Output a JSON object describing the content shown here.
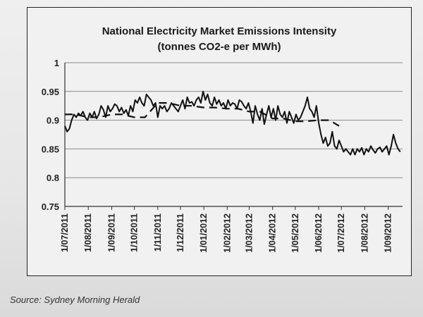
{
  "chart_data": {
    "type": "line",
    "title_lines": [
      "National Electricity Market Emissions Intensity",
      "(tonnes CO2-e per MWh)"
    ],
    "ylim": [
      0.75,
      1.0
    ],
    "yticks": [
      "0.75",
      "0.8",
      "0.85",
      "0.9",
      "0.95",
      "1"
    ],
    "ytick_values": [
      0.75,
      0.8,
      0.85,
      0.9,
      0.95,
      1.0
    ],
    "xticks": [
      "1/07/2011",
      "1/08/2011",
      "1/09/2011",
      "1/10/2011",
      "1/11/2011",
      "1/12/2011",
      "1/01/2012",
      "1/02/2012",
      "1/03/2012",
      "1/04/2012",
      "1/05/2012",
      "1/06/2012",
      "1/07/2012",
      "1/08/2012",
      "1/09/2012"
    ],
    "grid": true,
    "series": [
      {
        "style": "solid",
        "x": [
          "2011-07-01",
          "2011-07-04",
          "2011-07-07",
          "2011-07-10",
          "2011-07-13",
          "2011-07-16",
          "2011-07-19",
          "2011-07-22",
          "2011-07-25",
          "2011-07-28",
          "2011-07-31",
          "2011-08-03",
          "2011-08-06",
          "2011-08-09",
          "2011-08-12",
          "2011-08-15",
          "2011-08-18",
          "2011-08-21",
          "2011-08-24",
          "2011-08-27",
          "2011-08-30",
          "2011-09-02",
          "2011-09-05",
          "2011-09-08",
          "2011-09-11",
          "2011-09-14",
          "2011-09-17",
          "2011-09-20",
          "2011-09-23",
          "2011-09-26",
          "2011-09-29",
          "2011-10-02",
          "2011-10-05",
          "2011-10-08",
          "2011-10-11",
          "2011-10-14",
          "2011-10-17",
          "2011-10-20",
          "2011-10-23",
          "2011-10-26",
          "2011-10-29",
          "2011-11-01",
          "2011-11-04",
          "2011-11-07",
          "2011-11-10",
          "2011-11-13",
          "2011-11-16",
          "2011-11-19",
          "2011-11-22",
          "2011-11-25",
          "2011-11-28",
          "2011-12-01",
          "2011-12-04",
          "2011-12-07",
          "2011-12-10",
          "2011-12-13",
          "2011-12-16",
          "2011-12-19",
          "2011-12-22",
          "2011-12-25",
          "2011-12-28",
          "2011-12-31",
          "2012-01-03",
          "2012-01-06",
          "2012-01-09",
          "2012-01-12",
          "2012-01-15",
          "2012-01-18",
          "2012-01-21",
          "2012-01-24",
          "2012-01-27",
          "2012-01-30",
          "2012-02-02",
          "2012-02-05",
          "2012-02-08",
          "2012-02-11",
          "2012-02-14",
          "2012-02-17",
          "2012-02-20",
          "2012-02-23",
          "2012-02-26",
          "2012-02-29",
          "2012-03-03",
          "2012-03-06",
          "2012-03-09",
          "2012-03-12",
          "2012-03-15",
          "2012-03-18",
          "2012-03-21",
          "2012-03-24",
          "2012-03-27",
          "2012-03-30",
          "2012-04-02",
          "2012-04-05",
          "2012-04-08",
          "2012-04-11",
          "2012-04-14",
          "2012-04-17",
          "2012-04-20",
          "2012-04-23",
          "2012-04-26",
          "2012-04-29",
          "2012-05-02",
          "2012-05-05",
          "2012-05-08",
          "2012-05-11",
          "2012-05-14",
          "2012-05-17",
          "2012-05-20",
          "2012-05-23",
          "2012-05-26",
          "2012-05-29",
          "2012-06-01",
          "2012-06-04",
          "2012-06-07",
          "2012-06-10",
          "2012-06-13",
          "2012-06-16",
          "2012-06-19",
          "2012-06-22",
          "2012-06-25",
          "2012-06-28",
          "2012-07-01",
          "2012-07-04",
          "2012-07-07",
          "2012-07-10",
          "2012-07-13",
          "2012-07-16",
          "2012-07-19",
          "2012-07-22",
          "2012-07-25",
          "2012-07-28",
          "2012-07-31",
          "2012-08-03",
          "2012-08-06",
          "2012-08-09",
          "2012-08-12",
          "2012-08-15",
          "2012-08-18",
          "2012-08-21",
          "2012-08-24",
          "2012-08-27",
          "2012-08-30",
          "2012-09-02",
          "2012-09-05",
          "2012-09-08",
          "2012-09-11",
          "2012-09-14",
          "2012-09-17"
        ],
        "values": [
          0.89,
          0.88,
          0.885,
          0.9,
          0.91,
          0.905,
          0.912,
          0.908,
          0.915,
          0.905,
          0.9,
          0.912,
          0.905,
          0.915,
          0.903,
          0.91,
          0.925,
          0.918,
          0.905,
          0.925,
          0.915,
          0.92,
          0.928,
          0.925,
          0.915,
          0.922,
          0.912,
          0.918,
          0.908,
          0.925,
          0.915,
          0.935,
          0.93,
          0.94,
          0.93,
          0.925,
          0.945,
          0.94,
          0.935,
          0.925,
          0.93,
          0.905,
          0.925,
          0.92,
          0.925,
          0.915,
          0.92,
          0.93,
          0.925,
          0.92,
          0.915,
          0.925,
          0.935,
          0.92,
          0.94,
          0.93,
          0.932,
          0.925,
          0.935,
          0.94,
          0.93,
          0.95,
          0.935,
          0.945,
          0.93,
          0.925,
          0.94,
          0.928,
          0.935,
          0.925,
          0.93,
          0.92,
          0.935,
          0.925,
          0.93,
          0.928,
          0.92,
          0.935,
          0.932,
          0.925,
          0.92,
          0.93,
          0.915,
          0.895,
          0.925,
          0.91,
          0.9,
          0.92,
          0.893,
          0.91,
          0.925,
          0.905,
          0.92,
          0.9,
          0.925,
          0.91,
          0.905,
          0.915,
          0.895,
          0.915,
          0.905,
          0.895,
          0.91,
          0.9,
          0.905,
          0.915,
          0.925,
          0.94,
          0.92,
          0.915,
          0.905,
          0.925,
          0.895,
          0.875,
          0.86,
          0.87,
          0.855,
          0.86,
          0.88,
          0.855,
          0.85,
          0.865,
          0.855,
          0.845,
          0.85,
          0.845,
          0.84,
          0.85,
          0.84,
          0.85,
          0.845,
          0.852,
          0.84,
          0.85,
          0.845,
          0.855,
          0.848,
          0.843,
          0.85,
          0.853,
          0.845,
          0.85,
          0.855,
          0.84,
          0.855,
          0.875,
          0.86,
          0.85,
          0.845
        ]
      },
      {
        "style": "dashed",
        "x": [
          "2011-07-01",
          "2011-07-15",
          "2011-08-01",
          "2011-08-15",
          "2011-09-01",
          "2011-09-15",
          "2011-10-01",
          "2011-10-15",
          "2011-11-01",
          "2011-11-15",
          "2011-12-01",
          "2011-12-15",
          "2012-01-01",
          "2012-01-15",
          "2012-02-01",
          "2012-02-15",
          "2012-03-01",
          "2012-03-15",
          "2012-04-01",
          "2012-04-15",
          "2012-05-01",
          "2012-05-15",
          "2012-06-01",
          "2012-06-15",
          "2012-06-28"
        ],
        "values": [
          0.91,
          0.91,
          0.905,
          0.905,
          0.91,
          0.91,
          0.905,
          0.905,
          0.93,
          0.93,
          0.925,
          0.925,
          0.922,
          0.922,
          0.92,
          0.92,
          0.915,
          0.915,
          0.903,
          0.903,
          0.898,
          0.898,
          0.9,
          0.9,
          0.89
        ]
      }
    ]
  },
  "source_note": "Source: Sydney Morning Herald"
}
